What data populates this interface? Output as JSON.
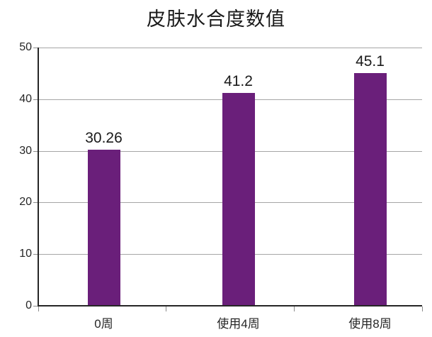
{
  "chart_data": {
    "type": "bar",
    "title": "皮肤水合度数值",
    "categories": [
      "0周",
      "使用4周",
      "使用8周"
    ],
    "values": [
      30.26,
      41.2,
      45.1
    ],
    "value_labels": [
      "30.26",
      "41.2",
      "45.1"
    ],
    "xlabel": "",
    "ylabel": "",
    "ylim": [
      0,
      50
    ],
    "yticks": [
      0,
      10,
      20,
      30,
      40,
      50
    ],
    "grid": "horizontal-major",
    "legend": "none",
    "colors": {
      "bar": "#6A1F7A",
      "gridline": "#A6A6A6",
      "axis": "#262626",
      "tick": "#8C8C8C",
      "text": "#1a1a1a",
      "background": "#FFFFFF"
    }
  }
}
